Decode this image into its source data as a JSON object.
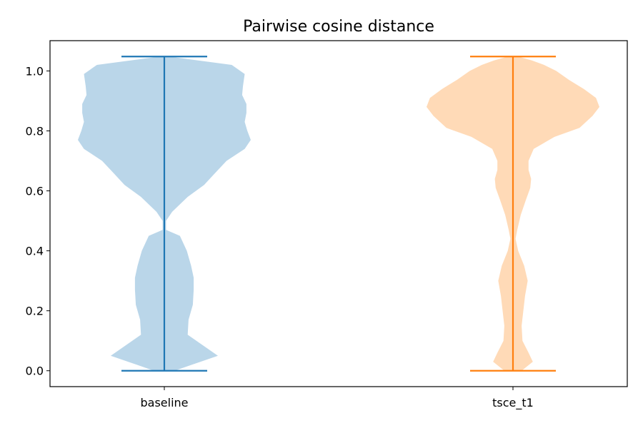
{
  "chart_data": {
    "type": "violin",
    "title": "Pairwise cosine distance",
    "xlabel": "",
    "ylabel": "",
    "categories": [
      "baseline",
      "tsce_t1"
    ],
    "ylim": [
      -0.053,
      1.101
    ],
    "yticks": [
      "0.0",
      "0.2",
      "0.4",
      "0.6",
      "0.8",
      "1.0"
    ],
    "grid": false,
    "legend": "none",
    "series": [
      {
        "category": "baseline",
        "min": 0.0,
        "max": 1.048,
        "body_color": "#bad6e9",
        "line_color": "#1f77b4",
        "density_profile": [
          [
            0.0,
            0.12
          ],
          [
            0.02,
            0.32
          ],
          [
            0.05,
            0.62
          ],
          [
            0.08,
            0.47
          ],
          [
            0.12,
            0.27
          ],
          [
            0.17,
            0.28
          ],
          [
            0.22,
            0.33
          ],
          [
            0.27,
            0.34
          ],
          [
            0.31,
            0.34
          ],
          [
            0.35,
            0.31
          ],
          [
            0.4,
            0.26
          ],
          [
            0.45,
            0.18
          ],
          [
            0.47,
            0.02
          ],
          [
            0.5,
            0.02
          ],
          [
            0.53,
            0.09
          ],
          [
            0.58,
            0.27
          ],
          [
            0.62,
            0.46
          ],
          [
            0.66,
            0.59
          ],
          [
            0.7,
            0.72
          ],
          [
            0.74,
            0.93
          ],
          [
            0.77,
            1.0
          ],
          [
            0.8,
            0.96
          ],
          [
            0.83,
            0.93
          ],
          [
            0.86,
            0.95
          ],
          [
            0.89,
            0.95
          ],
          [
            0.92,
            0.9
          ],
          [
            0.95,
            0.91
          ],
          [
            0.99,
            0.93
          ],
          [
            1.02,
            0.78
          ],
          [
            1.048,
            0.05
          ]
        ]
      },
      {
        "category": "tsce_t1",
        "min": 0.0,
        "max": 1.048,
        "body_color": "#ffdab7",
        "line_color": "#ff7f0e",
        "density_profile": [
          [
            0.0,
            0.1
          ],
          [
            0.03,
            0.23
          ],
          [
            0.06,
            0.18
          ],
          [
            0.1,
            0.11
          ],
          [
            0.15,
            0.1
          ],
          [
            0.2,
            0.12
          ],
          [
            0.25,
            0.14
          ],
          [
            0.3,
            0.17
          ],
          [
            0.35,
            0.13
          ],
          [
            0.4,
            0.06
          ],
          [
            0.44,
            0.03
          ],
          [
            0.47,
            0.05
          ],
          [
            0.52,
            0.09
          ],
          [
            0.57,
            0.15
          ],
          [
            0.61,
            0.2
          ],
          [
            0.64,
            0.21
          ],
          [
            0.67,
            0.18
          ],
          [
            0.7,
            0.18
          ],
          [
            0.74,
            0.24
          ],
          [
            0.78,
            0.48
          ],
          [
            0.81,
            0.77
          ],
          [
            0.85,
            0.92
          ],
          [
            0.88,
            1.0
          ],
          [
            0.91,
            0.96
          ],
          [
            0.94,
            0.82
          ],
          [
            0.97,
            0.65
          ],
          [
            1.0,
            0.5
          ],
          [
            1.02,
            0.36
          ],
          [
            1.035,
            0.22
          ],
          [
            1.048,
            0.06
          ]
        ]
      }
    ]
  }
}
